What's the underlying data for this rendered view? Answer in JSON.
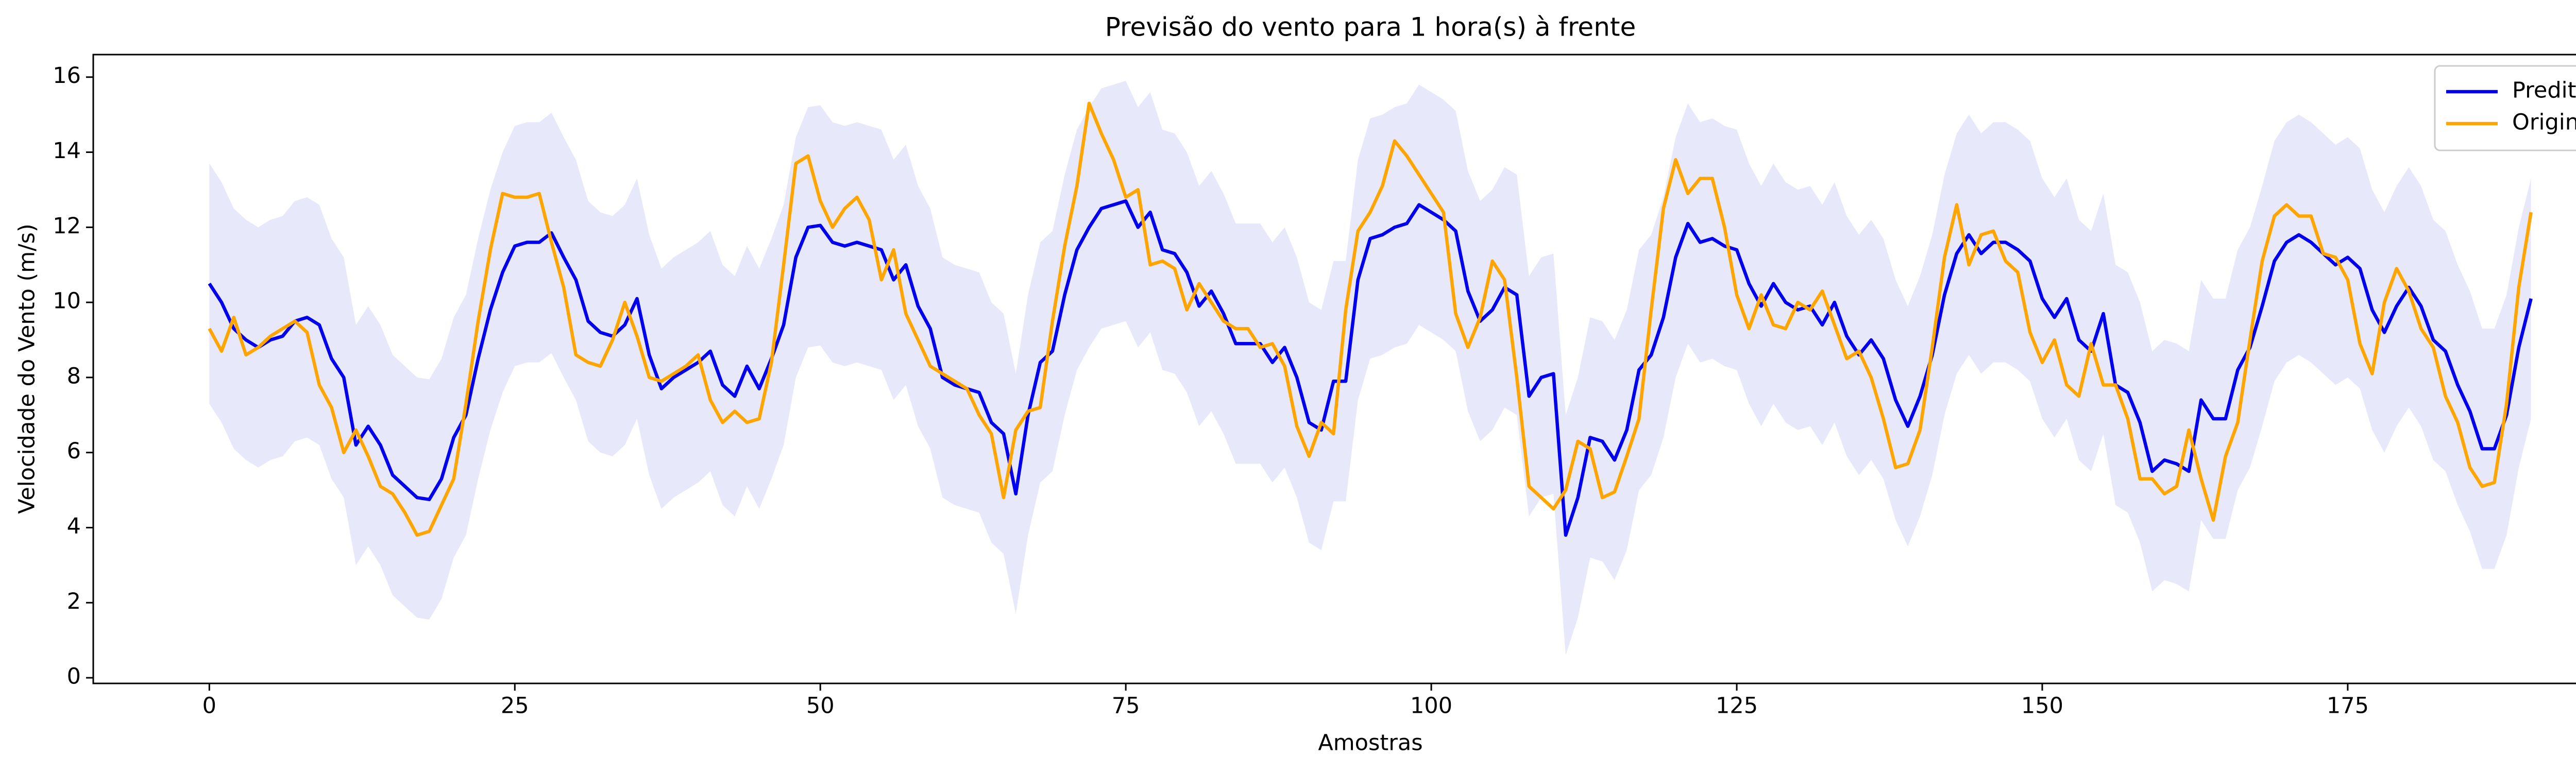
{
  "chart_data": {
    "type": "line",
    "title": "Previsão do vento para 1 hora(s) à frente",
    "x_label": "Amostras",
    "y_label": "Velocidade do Vento (m/s)",
    "x": [
      0,
      1,
      2,
      3,
      4,
      5,
      6,
      7,
      8,
      9,
      10,
      11,
      12,
      13,
      14,
      15,
      16,
      17,
      18,
      19,
      20,
      21,
      22,
      23,
      24,
      25,
      26,
      27,
      28,
      29,
      30,
      31,
      32,
      33,
      34,
      35,
      36,
      37,
      38,
      39,
      40,
      41,
      42,
      43,
      44,
      45,
      46,
      47,
      48,
      49,
      50,
      51,
      52,
      53,
      54,
      55,
      56,
      57,
      58,
      59,
      60,
      61,
      62,
      63,
      64,
      65,
      66,
      67,
      68,
      69,
      70,
      71,
      72,
      73,
      74,
      75,
      76,
      77,
      78,
      79,
      80,
      81,
      82,
      83,
      84,
      85,
      86,
      87,
      88,
      89,
      90,
      91,
      92,
      93,
      94,
      95,
      96,
      97,
      98,
      99,
      100,
      101,
      102,
      103,
      104,
      105,
      106,
      107,
      108,
      109,
      110,
      111,
      112,
      113,
      114,
      115,
      116,
      117,
      118,
      119,
      120,
      121,
      122,
      123,
      124,
      125,
      126,
      127,
      128,
      129,
      130,
      131,
      132,
      133,
      134,
      135,
      136,
      137,
      138,
      139,
      140,
      141,
      142,
      143,
      144,
      145,
      146,
      147,
      148,
      149,
      150,
      151,
      152,
      153,
      154,
      155,
      156,
      157,
      158,
      159,
      160,
      161,
      162,
      163,
      164,
      165,
      166,
      167,
      168,
      169,
      170,
      171,
      172,
      173,
      174,
      175,
      176,
      177,
      178,
      179,
      180,
      181,
      182,
      183,
      184,
      185,
      186,
      187,
      188,
      189,
      190
    ],
    "series": [
      {
        "name": "Predito",
        "color": "#0000ee",
        "values": [
          10.5,
          10.0,
          9.3,
          9.0,
          8.8,
          9.0,
          9.1,
          9.5,
          9.6,
          9.4,
          8.5,
          8.0,
          6.2,
          6.7,
          6.2,
          5.4,
          5.1,
          4.8,
          4.75,
          5.3,
          6.4,
          7.0,
          8.5,
          9.8,
          10.8,
          11.5,
          11.6,
          11.6,
          11.85,
          11.2,
          10.6,
          9.5,
          9.2,
          9.1,
          9.4,
          10.1,
          8.6,
          7.7,
          8.0,
          8.2,
          8.4,
          8.7,
          7.8,
          7.5,
          8.3,
          7.7,
          8.5,
          9.4,
          11.2,
          12.0,
          12.05,
          11.6,
          11.5,
          11.6,
          11.5,
          11.4,
          10.6,
          11.0,
          9.9,
          9.3,
          8.0,
          7.8,
          7.7,
          7.6,
          6.8,
          6.5,
          4.9,
          7.0,
          8.4,
          8.7,
          10.2,
          11.4,
          12.0,
          12.5,
          12.6,
          12.7,
          12.0,
          12.4,
          11.4,
          11.3,
          10.8,
          9.9,
          10.3,
          9.7,
          8.9,
          8.9,
          8.9,
          8.4,
          8.8,
          8.0,
          6.8,
          6.6,
          7.9,
          7.9,
          10.6,
          11.7,
          11.8,
          12.0,
          12.1,
          12.6,
          12.4,
          12.2,
          11.9,
          10.3,
          9.5,
          9.8,
          10.4,
          10.2,
          7.5,
          8.0,
          8.1,
          3.8,
          4.8,
          6.4,
          6.3,
          5.8,
          6.6,
          8.2,
          8.6,
          9.6,
          11.2,
          12.1,
          11.6,
          11.7,
          11.5,
          11.4,
          10.5,
          9.9,
          10.5,
          10.0,
          9.8,
          9.9,
          9.4,
          10.0,
          9.1,
          8.6,
          9.0,
          8.5,
          7.4,
          6.7,
          7.5,
          8.6,
          10.2,
          11.3,
          11.8,
          11.3,
          11.6,
          11.6,
          11.4,
          11.1,
          10.1,
          9.6,
          10.1,
          9.0,
          8.7,
          9.7,
          7.8,
          7.6,
          6.8,
          5.5,
          5.8,
          5.7,
          5.5,
          7.4,
          6.9,
          6.9,
          8.2,
          8.8,
          9.9,
          11.1,
          11.6,
          11.8,
          11.6,
          11.3,
          11.0,
          11.2,
          10.9,
          9.8,
          9.2,
          9.9,
          10.4,
          9.9,
          9.0,
          8.7,
          7.8,
          7.1,
          6.1,
          6.1,
          7.0,
          8.8,
          10.1
        ]
      },
      {
        "name": "Original",
        "color": "#ffa500",
        "values": [
          9.3,
          8.7,
          9.6,
          8.6,
          8.8,
          9.1,
          9.3,
          9.5,
          9.2,
          7.8,
          7.2,
          6.0,
          6.6,
          5.9,
          5.1,
          4.9,
          4.4,
          3.8,
          3.9,
          4.6,
          5.3,
          7.3,
          9.5,
          11.4,
          12.9,
          12.8,
          12.8,
          12.9,
          11.6,
          10.4,
          8.6,
          8.4,
          8.3,
          9.0,
          10.0,
          9.1,
          8.0,
          7.9,
          8.1,
          8.3,
          8.6,
          7.4,
          6.8,
          7.1,
          6.8,
          6.9,
          8.4,
          11.0,
          13.7,
          13.9,
          12.7,
          12.0,
          12.5,
          12.8,
          12.2,
          10.6,
          11.4,
          9.7,
          9.0,
          8.3,
          8.1,
          7.9,
          7.7,
          7.0,
          6.5,
          4.8,
          6.6,
          7.1,
          7.2,
          9.5,
          11.5,
          13.1,
          15.3,
          14.5,
          13.8,
          12.8,
          13.0,
          11.0,
          11.1,
          10.9,
          9.8,
          10.5,
          10.0,
          9.5,
          9.3,
          9.3,
          8.8,
          8.9,
          8.3,
          6.7,
          5.9,
          6.8,
          6.5,
          9.8,
          11.9,
          12.4,
          13.1,
          14.3,
          13.9,
          13.4,
          12.9,
          12.4,
          9.7,
          8.8,
          9.6,
          11.1,
          10.6,
          8.0,
          5.1,
          4.8,
          4.5,
          5.0,
          6.3,
          6.1,
          4.8,
          4.95,
          5.9,
          6.9,
          9.8,
          12.5,
          13.8,
          12.9,
          13.3,
          13.3,
          12.0,
          10.2,
          9.3,
          10.2,
          9.4,
          9.3,
          10.0,
          9.8,
          10.3,
          9.4,
          8.5,
          8.7,
          8.0,
          6.9,
          5.6,
          5.7,
          6.6,
          8.8,
          11.2,
          12.6,
          11.0,
          11.8,
          11.9,
          11.1,
          10.8,
          9.2,
          8.4,
          9.0,
          7.8,
          7.5,
          8.9,
          7.8,
          7.8,
          6.9,
          5.3,
          5.3,
          4.9,
          5.1,
          6.6,
          5.3,
          4.2,
          5.9,
          6.8,
          9.0,
          11.1,
          12.3,
          12.6,
          12.3,
          12.3,
          11.3,
          11.2,
          10.6,
          8.9,
          8.1,
          10.0,
          10.9,
          10.3,
          9.3,
          8.8,
          7.5,
          6.8,
          5.6,
          5.1,
          5.2,
          7.3,
          10.4,
          12.4
        ]
      }
    ],
    "band_halfwidth": 3.2,
    "band_color": "#e8e8fb",
    "xlim": [
      -9.5,
      199.5
    ],
    "xticks": [
      0,
      25,
      50,
      75,
      100,
      125,
      150,
      175
    ],
    "ylim": [
      -0.15,
      16.6
    ],
    "yticks": [
      0,
      2,
      4,
      6,
      8,
      10,
      12,
      14,
      16
    ],
    "legend": "upper right"
  }
}
